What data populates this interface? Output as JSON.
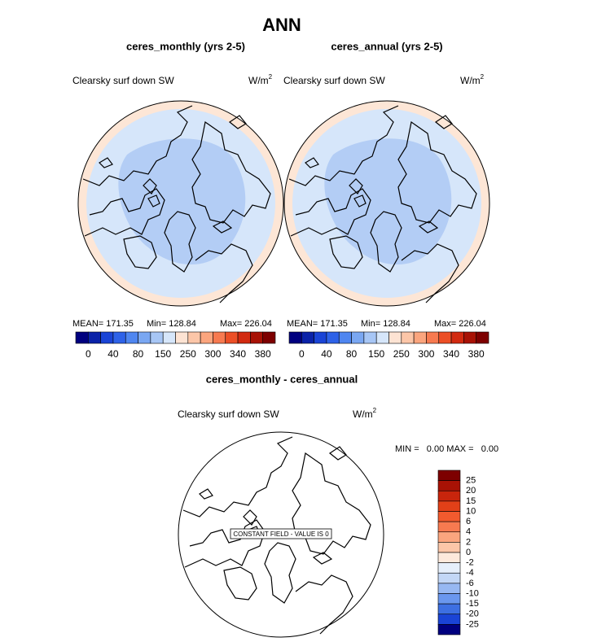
{
  "title": "ANN",
  "panels": [
    {
      "title": "ceres_monthly (yrs 2-5)",
      "variable": "Clearsky surf down SW",
      "units": "W/m",
      "units_exponent": "2",
      "stats": [
        "MEAN= 171.35",
        "Min= 128.84",
        "Max= 226.04"
      ],
      "colorbar": {
        "labels": [
          "0",
          "40",
          "80",
          "150",
          "250",
          "300",
          "340",
          "380"
        ],
        "colors": [
          "#00007f",
          "#0a22a8",
          "#1a44d6",
          "#2e62e8",
          "#4f86f0",
          "#7aa7f2",
          "#a7c6f5",
          "#d6e6fa",
          "#fde3d3",
          "#fcc6a8",
          "#fba57e",
          "#f77a50",
          "#ec4f26",
          "#d22a10",
          "#a81205",
          "#7d0000"
        ]
      }
    },
    {
      "title": "ceres_annual (yrs 2-5)",
      "variable": "Clearsky surf down SW",
      "units": "W/m",
      "units_exponent": "2",
      "stats": [
        "MEAN= 171.35",
        "Min= 128.84",
        "Max= 226.04"
      ],
      "colorbar": {
        "labels": [
          "0",
          "40",
          "80",
          "150",
          "250",
          "300",
          "340",
          "380"
        ],
        "colors": [
          "#00007f",
          "#0a22a8",
          "#1a44d6",
          "#2e62e8",
          "#4f86f0",
          "#7aa7f2",
          "#a7c6f5",
          "#d6e6fa",
          "#fde3d3",
          "#fcc6a8",
          "#fba57e",
          "#f77a50",
          "#ec4f26",
          "#d22a10",
          "#a81205",
          "#7d0000"
        ]
      }
    }
  ],
  "difference": {
    "title": "ceres_monthly - ceres_annual",
    "variable": "Clearsky surf down SW",
    "units": "W/m",
    "units_exponent": "2",
    "stats": "MIN =   0.00 MAX =   0.00",
    "annotation": "CONSTANT FIELD - VALUE IS 0",
    "colorbar": {
      "labels": [
        "25",
        "20",
        "15",
        "10",
        "6",
        "4",
        "2",
        "0",
        "-2",
        "-4",
        "-6",
        "-10",
        "-15",
        "-20",
        "-25"
      ],
      "colors": [
        "#7d0000",
        "#a81205",
        "#c8250c",
        "#e24018",
        "#f25a2e",
        "#f77a50",
        "#fba57e",
        "#fcc6a8",
        "#fde9dc",
        "#e6effb",
        "#c3d7f6",
        "#97b8f2",
        "#6a97ee",
        "#3d6fe2",
        "#1a44d6",
        "#00007f"
      ]
    }
  }
}
